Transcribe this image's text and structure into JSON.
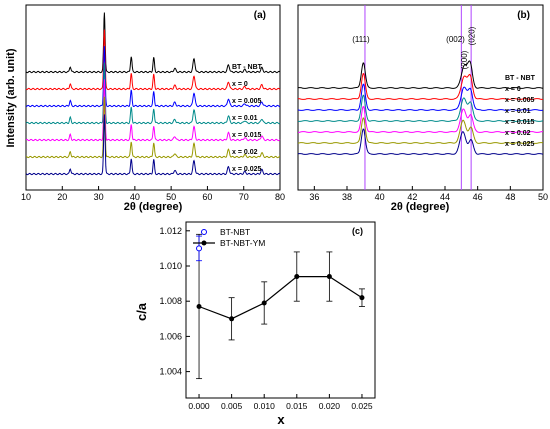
{
  "chart_data": [
    {
      "type": "line",
      "panel_label": "(a)",
      "xlabel": "2θ (degree)",
      "ylabel": "Intensity (arb. unit)",
      "xlim": [
        10,
        80
      ],
      "x_ticks": [
        "10",
        "20",
        "30",
        "40",
        "50",
        "60",
        "70",
        "80"
      ],
      "grid": false,
      "peaks_2theta": [
        22.2,
        31.6,
        39.0,
        45.2,
        51.0,
        56.3,
        65.8,
        70.3,
        75.0
      ],
      "peak_heights": [
        0.09,
        1.0,
        0.26,
        0.24,
        0.06,
        0.22,
        0.12,
        0.04,
        0.07
      ],
      "series": [
        {
          "name": "BT - NBT",
          "color": "#000000"
        },
        {
          "name": "x = 0",
          "color": "#ff0000"
        },
        {
          "name": "x = 0.005",
          "color": "#0000ff"
        },
        {
          "name": "x = 0.01",
          "color": "#008b8b"
        },
        {
          "name": "x = 0.015",
          "color": "#ff00ff"
        },
        {
          "name": "x = 0.02",
          "color": "#999900"
        },
        {
          "name": "x = 0.025",
          "color": "#00008b"
        }
      ]
    },
    {
      "type": "line",
      "panel_label": "(b)",
      "xlabel": "2θ (degree)",
      "ylabel": "",
      "xlim": [
        35,
        50
      ],
      "x_ticks": [
        "36",
        "38",
        "40",
        "42",
        "44",
        "46",
        "48",
        "50"
      ],
      "grid": false,
      "reference_lines": [
        39.1,
        45.0,
        45.6
      ],
      "peak_labels": [
        "(111)",
        "(002)",
        "(200)",
        "(020)"
      ],
      "peaks_2theta": [
        39.0,
        45.1,
        45.6
      ],
      "series": [
        {
          "name": "BT - NBT",
          "color": "#000000"
        },
        {
          "name": "x = 0",
          "color": "#ff0000"
        },
        {
          "name": "x = 0.005",
          "color": "#0000ff"
        },
        {
          "name": "x = 0.01",
          "color": "#008b8b"
        },
        {
          "name": "x = 0.015",
          "color": "#ff00ff"
        },
        {
          "name": "x = 0.02",
          "color": "#999900"
        },
        {
          "name": "x = 0.025",
          "color": "#00008b"
        }
      ]
    },
    {
      "type": "scatter",
      "panel_label": "(c)",
      "xlabel": "x",
      "ylabel": "c/a",
      "xlim": [
        -0.002,
        0.027
      ],
      "ylim": [
        1.0025,
        1.0125
      ],
      "x_ticks": [
        "0.000",
        "0.005",
        "0.010",
        "0.015",
        "0.020",
        "0.025"
      ],
      "y_ticks": [
        "1.004",
        "1.006",
        "1.008",
        "1.010",
        "1.012"
      ],
      "legend": "top-left",
      "series": [
        {
          "name": "BT-NBT",
          "marker": "open-circle",
          "color": "#0000ff",
          "x": [
            0.0
          ],
          "y": [
            1.011
          ],
          "err": [
            0.0007
          ]
        },
        {
          "name": "BT-NBT-YM",
          "marker": "filled-circle",
          "color": "#000000",
          "x": [
            0.0,
            0.005,
            0.01,
            0.015,
            0.02,
            0.025
          ],
          "y": [
            1.0077,
            1.007,
            1.0079,
            1.0094,
            1.0094,
            1.0082
          ],
          "err": [
            0.0041,
            0.0012,
            0.0012,
            0.0014,
            0.0014,
            0.0005
          ]
        }
      ]
    }
  ]
}
